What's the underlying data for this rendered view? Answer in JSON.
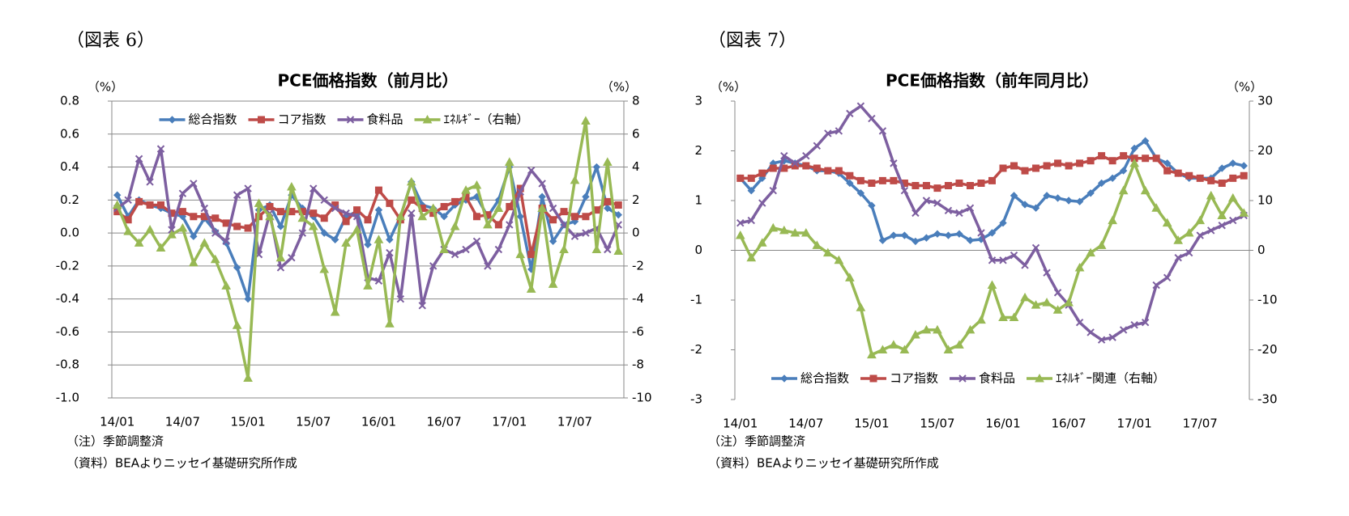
{
  "chart_data": [
    {
      "type": "line",
      "label": "（図表 6）",
      "title": "PCE価格指数（前月比）",
      "y_label": "（%）",
      "y2_label": "（%）",
      "categories": [
        "14/01",
        null,
        null,
        null,
        null,
        null,
        "14/07",
        null,
        null,
        null,
        null,
        null,
        "15/01",
        null,
        null,
        null,
        null,
        null,
        "15/07",
        null,
        null,
        null,
        null,
        null,
        "16/01",
        null,
        null,
        null,
        null,
        null,
        "16/07",
        null,
        null,
        null,
        null,
        null,
        "17/01",
        null,
        null,
        null,
        null,
        null,
        "17/07",
        null,
        null,
        null,
        null
      ],
      "ylim": [
        -1.0,
        0.8
      ],
      "yticks": [
        0.8,
        0.6,
        0.4,
        0.2,
        {
          "value": 0,
          "label": "0.0"
        },
        -0.2,
        -0.4,
        -0.6,
        -0.8,
        {
          "value": -1.0,
          "label": "-1.0"
        }
      ],
      "y2lim": [
        -10,
        8
      ],
      "y2ticks": [
        8,
        6,
        4,
        2,
        0,
        -2,
        -4,
        -6,
        -8,
        -10
      ],
      "grid": true,
      "legend": "top",
      "series": [
        {
          "name": "総合指数",
          "color": "#4a7ebb",
          "marker": "diamond",
          "values": [
            0.23,
            0.1,
            0.2,
            0.17,
            0.15,
            0.12,
            0.1,
            -0.02,
            0.09,
            0.01,
            -0.06,
            -0.21,
            -0.4,
            0.14,
            0.17,
            0.04,
            0.23,
            0.15,
            0.1,
            0.0,
            -0.04,
            0.1,
            0.13,
            -0.07,
            0.14,
            -0.04,
            0.1,
            0.31,
            0.17,
            0.15,
            0.1,
            0.17,
            0.2,
            0.22,
            0.1,
            0.2,
            0.4,
            0.1,
            -0.22,
            0.22,
            -0.05,
            0.05,
            0.07,
            0.22,
            0.4,
            0.15,
            0.11
          ]
        },
        {
          "name": "コア指数",
          "color": "#be4b48",
          "marker": "square",
          "values": [
            0.13,
            0.08,
            0.19,
            0.17,
            0.17,
            0.12,
            0.13,
            0.1,
            0.1,
            0.09,
            0.06,
            0.04,
            0.03,
            0.1,
            0.16,
            0.13,
            0.13,
            0.13,
            0.12,
            0.09,
            0.17,
            0.07,
            0.14,
            0.08,
            0.26,
            0.18,
            0.08,
            0.2,
            0.15,
            0.12,
            0.16,
            0.19,
            0.22,
            0.1,
            0.11,
            0.05,
            0.16,
            0.27,
            -0.13,
            0.15,
            0.08,
            0.13,
            0.1,
            0.1,
            0.14,
            0.19,
            0.17
          ]
        },
        {
          "name": "食料品",
          "color": "#7d5fa0",
          "marker": "x",
          "values": [
            0.15,
            0.2,
            0.45,
            0.31,
            0.51,
            0.02,
            0.24,
            0.3,
            0.15,
            0.0,
            -0.05,
            0.23,
            0.27,
            -0.13,
            0.12,
            -0.21,
            -0.15,
            0.0,
            0.27,
            0.2,
            0.15,
            0.12,
            0.1,
            -0.27,
            -0.29,
            -0.12,
            -0.4,
            0.12,
            -0.44,
            -0.2,
            -0.1,
            -0.13,
            -0.1,
            -0.05,
            -0.2,
            -0.1,
            0.05,
            0.25,
            0.38,
            0.3,
            0.15,
            0.05,
            -0.02,
            0.0,
            0.03,
            -0.1,
            0.05
          ]
        },
        {
          "name": "ｴﾈﾙｷﾞｰ（右軸）",
          "color": "#98b954",
          "marker": "triangle",
          "axis": "y2",
          "values": [
            1.7,
            0.1,
            -0.6,
            0.2,
            -0.9,
            -0.1,
            0.3,
            -1.8,
            -0.6,
            -1.6,
            -3.2,
            -5.6,
            -8.8,
            1.8,
            1.0,
            -1.5,
            2.8,
            0.9,
            0.4,
            -2.2,
            -4.8,
            -0.6,
            0.2,
            -3.2,
            -0.4,
            -5.5,
            1.0,
            3.1,
            1.0,
            1.5,
            -1.0,
            0.4,
            2.6,
            2.9,
            0.5,
            1.5,
            4.3,
            -1.3,
            -3.4,
            1.5,
            -3.1,
            -1.0,
            3.2,
            6.8,
            -1.0,
            4.3,
            -1.1
          ]
        }
      ],
      "notes": [
        "（注）季節調整済",
        "（資料）BEAよりニッセイ基礎研究所作成"
      ]
    },
    {
      "type": "line",
      "label": "（図表 7）",
      "title": "PCE価格指数（前年同月比）",
      "y_label": "（%）",
      "y2_label": "（%）",
      "categories": [
        "14/01",
        null,
        null,
        null,
        null,
        null,
        "14/07",
        null,
        null,
        null,
        null,
        null,
        "15/01",
        null,
        null,
        null,
        null,
        null,
        "15/07",
        null,
        null,
        null,
        null,
        null,
        "16/01",
        null,
        null,
        null,
        null,
        null,
        "16/07",
        null,
        null,
        null,
        null,
        null,
        "17/01",
        null,
        null,
        null,
        null,
        null,
        "17/07",
        null,
        null,
        null,
        null
      ],
      "ylim": [
        -3,
        3
      ],
      "yticks": [
        3,
        2,
        1,
        0,
        -1,
        -2,
        -3
      ],
      "y2lim": [
        -30,
        30
      ],
      "y2ticks": [
        30,
        20,
        10,
        0,
        -10,
        -20,
        -30
      ],
      "grid": false,
      "legend": "bottom",
      "series": [
        {
          "name": "総合指数",
          "color": "#4a7ebb",
          "marker": "diamond",
          "values": [
            1.45,
            1.2,
            1.45,
            1.75,
            1.8,
            1.75,
            1.7,
            1.6,
            1.6,
            1.55,
            1.35,
            1.15,
            0.9,
            0.2,
            0.3,
            0.3,
            0.18,
            0.25,
            0.33,
            0.3,
            0.33,
            0.2,
            0.22,
            0.35,
            0.55,
            1.1,
            0.92,
            0.85,
            1.1,
            1.05,
            1.0,
            0.98,
            1.15,
            1.35,
            1.45,
            1.6,
            2.05,
            2.2,
            1.85,
            1.75,
            1.55,
            1.45,
            1.45,
            1.45,
            1.65,
            1.75,
            1.7
          ]
        },
        {
          "name": "コア指数",
          "color": "#be4b48",
          "marker": "square",
          "values": [
            1.45,
            1.45,
            1.55,
            1.65,
            1.65,
            1.7,
            1.7,
            1.65,
            1.6,
            1.6,
            1.5,
            1.4,
            1.35,
            1.4,
            1.4,
            1.35,
            1.3,
            1.3,
            1.25,
            1.3,
            1.35,
            1.3,
            1.35,
            1.4,
            1.65,
            1.7,
            1.6,
            1.65,
            1.7,
            1.75,
            1.7,
            1.75,
            1.8,
            1.9,
            1.8,
            1.9,
            1.85,
            1.85,
            1.85,
            1.6,
            1.55,
            1.5,
            1.45,
            1.4,
            1.35,
            1.45,
            1.5
          ]
        },
        {
          "name": "食料品",
          "color": "#7d5fa0",
          "marker": "x",
          "values": [
            0.55,
            0.6,
            0.95,
            1.2,
            1.9,
            1.75,
            1.9,
            2.1,
            2.35,
            2.4,
            2.75,
            2.9,
            2.65,
            2.4,
            1.75,
            1.2,
            0.75,
            1.0,
            0.95,
            0.8,
            0.75,
            0.85,
            0.35,
            -0.2,
            -0.2,
            -0.1,
            -0.3,
            0.05,
            -0.45,
            -0.85,
            -1.1,
            -1.45,
            -1.65,
            -1.8,
            -1.75,
            -1.6,
            -1.5,
            -1.45,
            -0.7,
            -0.55,
            -0.15,
            -0.05,
            0.3,
            0.4,
            0.5,
            0.6,
            0.7
          ]
        },
        {
          "name": "ｴﾈﾙｷﾞｰ関連（右軸）",
          "color": "#98b954",
          "marker": "triangle",
          "axis": "y2",
          "values": [
            3,
            -1.5,
            1.5,
            4.5,
            4,
            3.5,
            3.5,
            1,
            -0.5,
            -2,
            -5.5,
            -11.5,
            -21,
            -20,
            -19,
            -20,
            -17,
            -16,
            -16,
            -20,
            -19,
            -16,
            -14,
            -7,
            -13.5,
            -13.5,
            -9.5,
            -11,
            -10.5,
            -12,
            -10.5,
            -3.5,
            -0.5,
            1,
            6,
            12,
            17.5,
            12,
            8.5,
            5.5,
            2,
            3.5,
            6,
            11,
            7,
            10.5,
            7.5
          ]
        }
      ],
      "notes": [
        "（注）季節調整済",
        "（資料）BEAよりニッセイ基礎研究所作成"
      ]
    }
  ]
}
